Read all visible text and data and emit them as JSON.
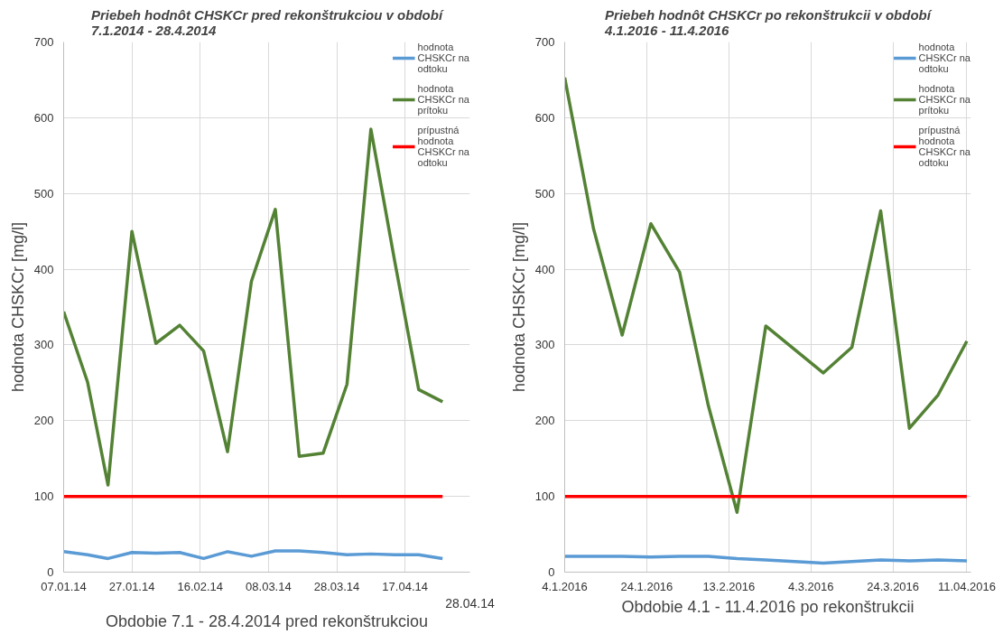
{
  "chart_data": [
    {
      "type": "line",
      "title": "Priebeh hodnôt CHSKCr pred rekonštrukciou v období 7.1.2014 - 28.4.2014",
      "xlabel": "Obdobie 7.1 - 28.4.2014 pred rekonštrukciou",
      "ylabel": "hodnota CHSKCr [mg/l]",
      "x": [
        "2014-01-07",
        "2014-01-14",
        "2014-01-20",
        "2014-01-27",
        "2014-02-03",
        "2014-02-10",
        "2014-02-17",
        "2014-02-24",
        "2014-03-03",
        "2014-03-10",
        "2014-03-17",
        "2014-03-24",
        "2014-03-31",
        "2014-04-07",
        "2014-04-14",
        "2014-04-21",
        "2014-04-28"
      ],
      "series": [
        {
          "name": "hodnota CHSKCr na odtoku",
          "color": "#5b9bd5",
          "values": [
            27,
            23,
            18,
            26,
            25,
            26,
            18,
            27,
            21,
            28,
            28,
            26,
            23,
            24,
            23,
            23,
            18
          ]
        },
        {
          "name": "hodnota CHSKCr na prítoku",
          "color": "#548235",
          "values": [
            344,
            251,
            115,
            450,
            302,
            326,
            292,
            159,
            384,
            479,
            153,
            157,
            248,
            585,
            410,
            241,
            225
          ]
        },
        {
          "name": "prípustná hodnota CHSKCr na odtoku",
          "color": "#ff0000",
          "values": [
            100,
            100,
            100,
            100,
            100,
            100,
            100,
            100,
            100,
            100,
            100,
            100,
            100,
            100,
            100,
            100,
            100
          ]
        }
      ],
      "xlim": [
        "2014-01-07",
        "2014-05-06"
      ],
      "xticks": [
        {
          "value": "2014-01-07",
          "label": "07.01.14"
        },
        {
          "value": "2014-01-27",
          "label": "27.01.14"
        },
        {
          "value": "2014-02-16",
          "label": "16.02.14"
        },
        {
          "value": "2014-03-08",
          "label": "08.03.14"
        },
        {
          "value": "2014-03-28",
          "label": "28.03.14"
        },
        {
          "value": "2014-04-17",
          "label": "17.04.14"
        }
      ],
      "annotations": [
        "28.04.14"
      ],
      "ylim": [
        0,
        700
      ],
      "yticks": [
        0,
        100,
        200,
        300,
        400,
        500,
        600,
        700
      ],
      "grid": true,
      "legend": "top right"
    },
    {
      "type": "line",
      "title": "Priebeh hodnôt CHSKCr po rekonštrukcii v období 4.1.2016 - 11.4.2016",
      "xlabel": "Obdobie 4.1 - 11.4.2016 po rekonštrukcii",
      "ylabel": "hodnota CHSKCr [mg/l]",
      "x": [
        "2016-01-04",
        "2016-01-11",
        "2016-01-18",
        "2016-01-25",
        "2016-02-01",
        "2016-02-08",
        "2016-02-15",
        "2016-02-22",
        "2016-02-29",
        "2016-03-07",
        "2016-03-14",
        "2016-03-21",
        "2016-03-28",
        "2016-04-04",
        "2016-04-11"
      ],
      "series": [
        {
          "name": "hodnota CHSKCr na odtoku",
          "color": "#5b9bd5",
          "values": [
            21,
            21,
            21,
            20,
            21,
            21,
            18,
            16,
            14,
            12,
            14,
            16,
            15,
            16,
            15
          ]
        },
        {
          "name": "hodnota CHSKCr na prítoku",
          "color": "#548235",
          "values": [
            653,
            454,
            313,
            460,
            396,
            220,
            79,
            325,
            294,
            263,
            297,
            477,
            190,
            234,
            305
          ]
        },
        {
          "name": "prípustná hodnota CHSKCr na odtoku",
          "color": "#ff0000",
          "values": [
            100,
            100,
            100,
            100,
            100,
            100,
            100,
            100,
            100,
            100,
            100,
            100,
            100,
            100,
            100
          ]
        }
      ],
      "xlim": [
        "2016-01-04",
        "2016-04-12"
      ],
      "xticks": [
        {
          "value": "2016-01-04",
          "label": "4.1.2016"
        },
        {
          "value": "2016-01-24",
          "label": "24.1.2016"
        },
        {
          "value": "2016-02-13",
          "label": "13.2.2016"
        },
        {
          "value": "2016-03-04",
          "label": "4.3.2016"
        },
        {
          "value": "2016-03-24",
          "label": "24.3.2016"
        },
        {
          "value": "2016-04-11",
          "label": "11.04.2016"
        }
      ],
      "ylim": [
        0,
        700
      ],
      "yticks": [
        0,
        100,
        200,
        300,
        400,
        500,
        600,
        700
      ],
      "grid": true,
      "legend": "top right"
    }
  ]
}
